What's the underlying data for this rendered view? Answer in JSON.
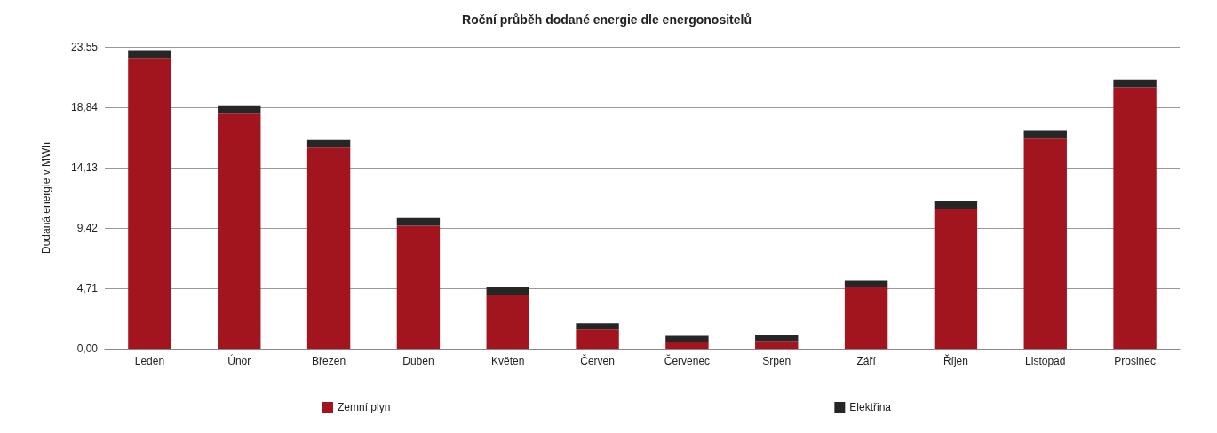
{
  "chart_data": {
    "type": "bar",
    "title": "Roční průběh dodané energie dle energonositelů",
    "ylabel": "Dodaná energie v MWh",
    "stacked": true,
    "categories": [
      "Leden",
      "Únor",
      "Březen",
      "Duben",
      "Květen",
      "Červen",
      "Červenec",
      "Srpen",
      "Září",
      "Říjen",
      "Listopad",
      "Prosinec"
    ],
    "series": [
      {
        "name": "Zemní plyn",
        "color": "#a3151e",
        "values": [
          22.7,
          18.4,
          15.7,
          9.6,
          4.2,
          1.5,
          0.5,
          0.6,
          4.8,
          10.9,
          16.4,
          20.4
        ]
      },
      {
        "name": "Elektřina",
        "color": "#262626",
        "values": [
          0.6,
          0.6,
          0.6,
          0.6,
          0.6,
          0.5,
          0.5,
          0.5,
          0.5,
          0.6,
          0.6,
          0.6
        ]
      }
    ],
    "ylim": [
      0,
      23.55
    ],
    "yticks": [
      {
        "value": 0,
        "label": "0,00"
      },
      {
        "value": 4.71,
        "label": "4,71"
      },
      {
        "value": 9.42,
        "label": "9,42"
      },
      {
        "value": 14.13,
        "label": "14,13"
      },
      {
        "value": 18.84,
        "label": "18,84"
      },
      {
        "value": 23.55,
        "label": "23,55"
      }
    ],
    "grid": "y",
    "legend": "bottom"
  }
}
